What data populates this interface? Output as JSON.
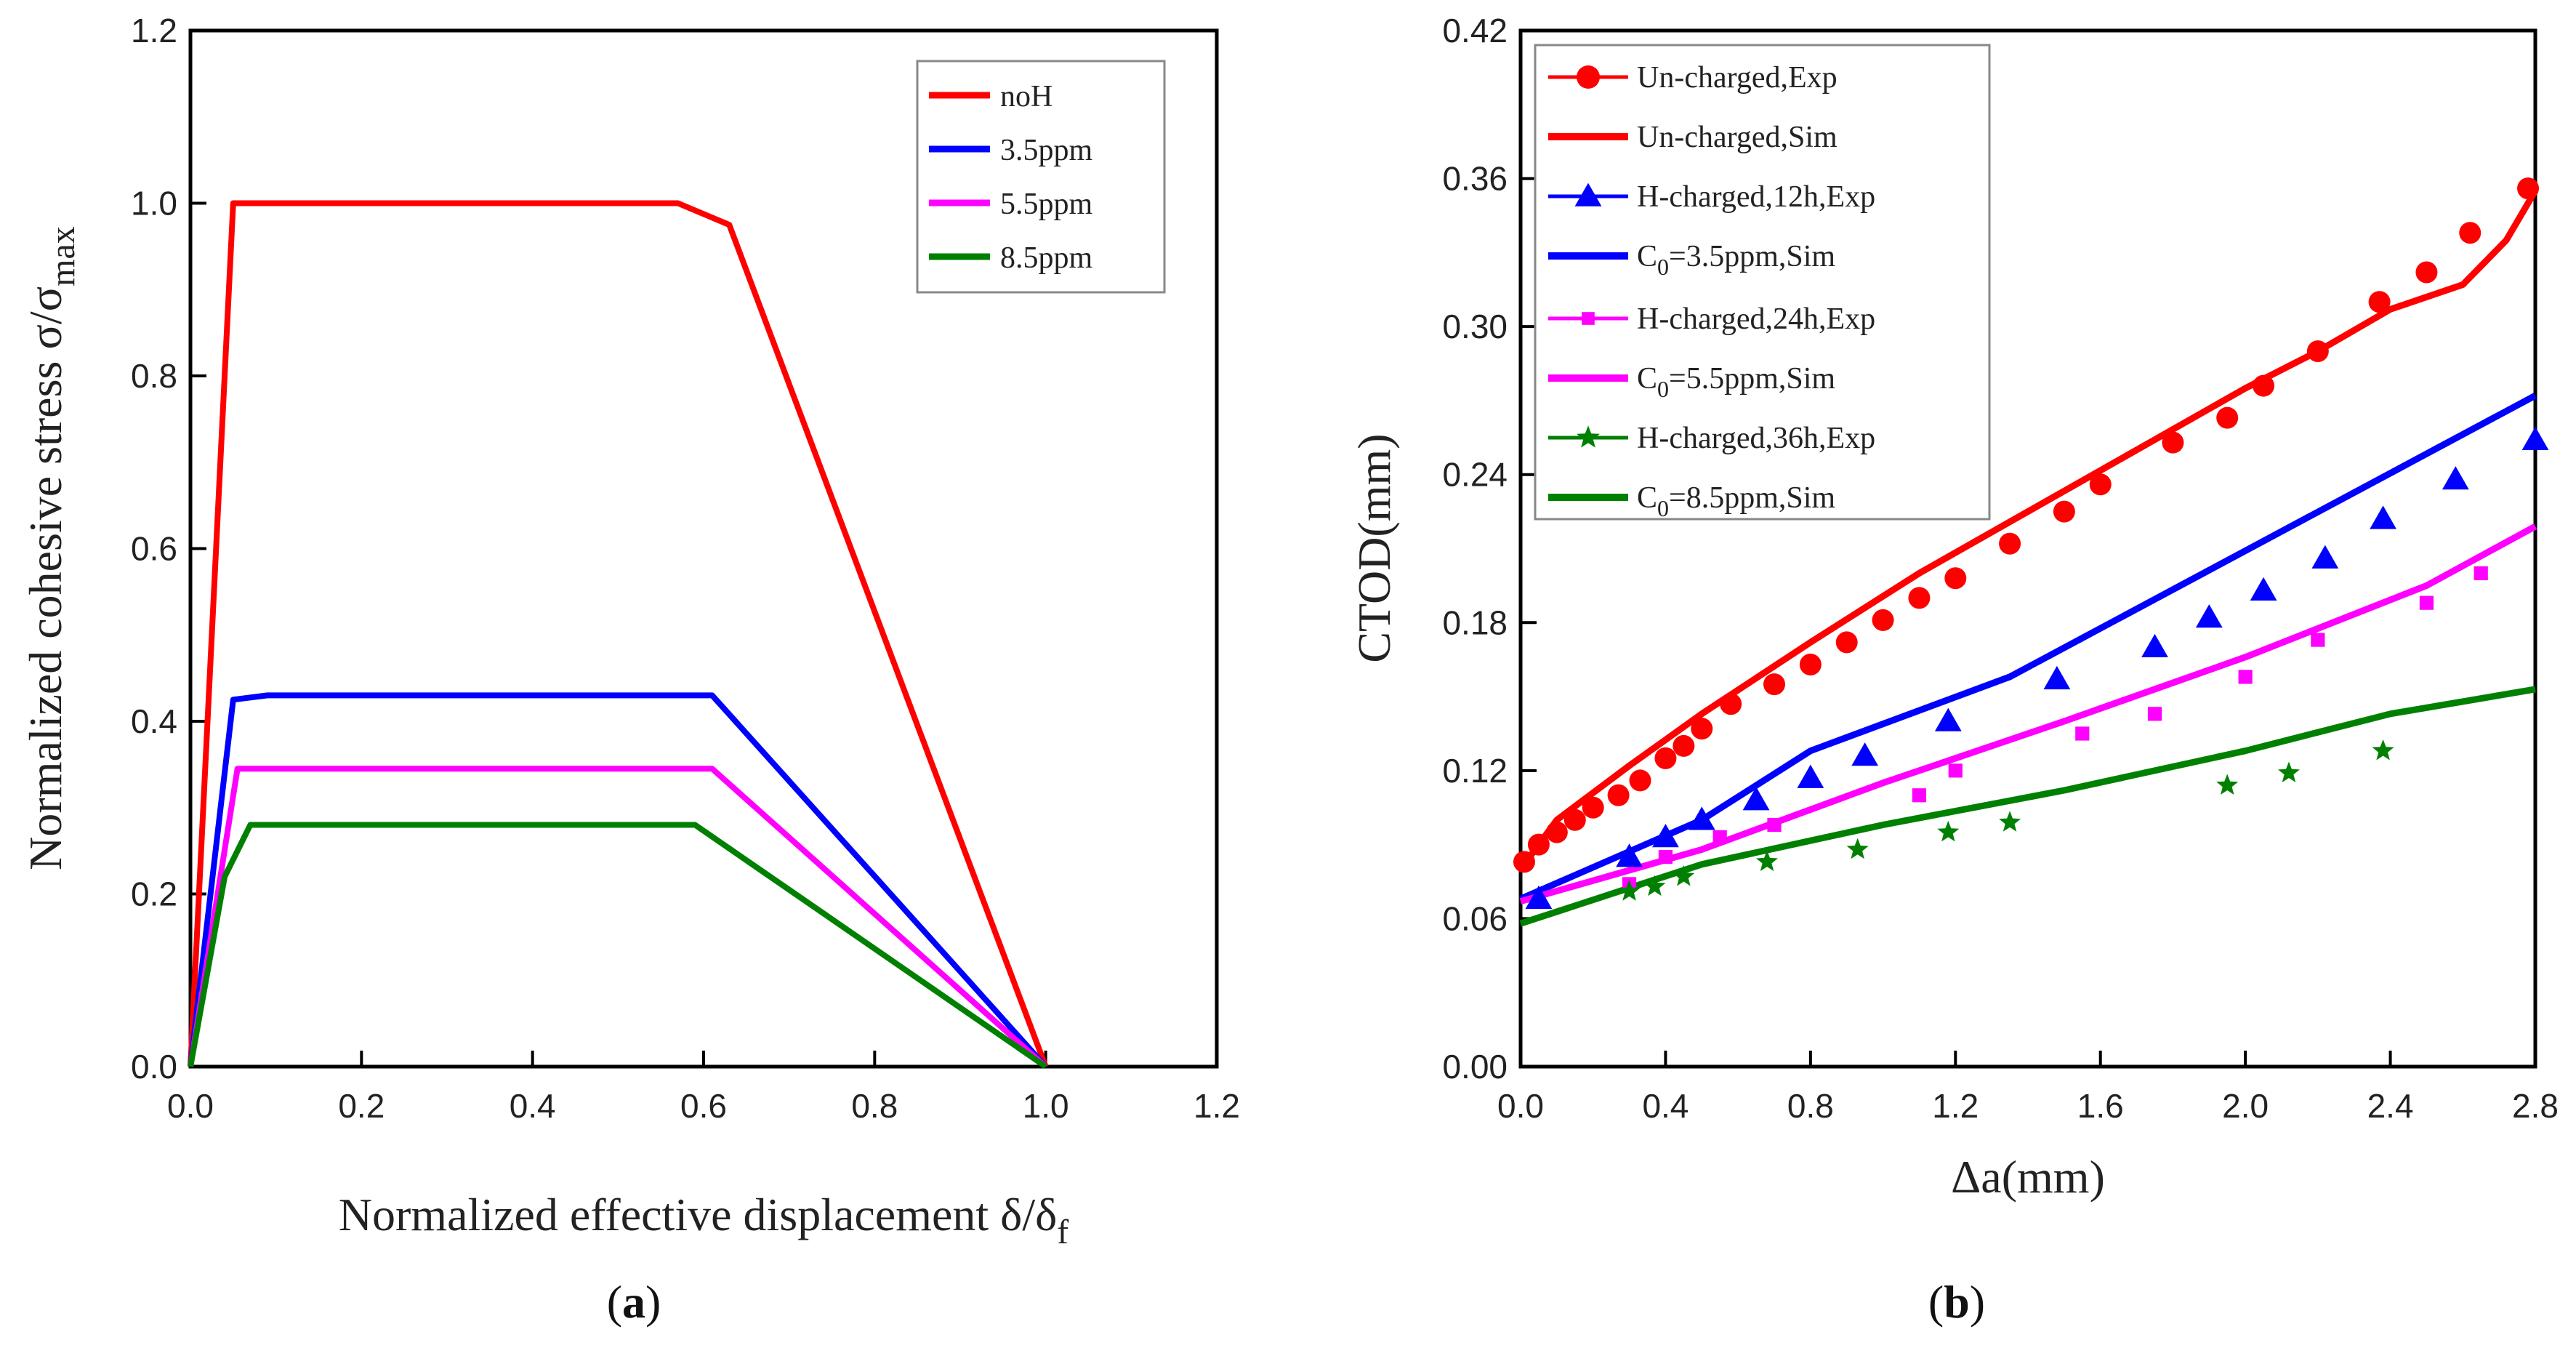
{
  "chart_data": [
    {
      "type": "line",
      "panel": "a",
      "caption": "a",
      "xlabel": "Normalized effective displacement δ/δ",
      "xlabel_sub": "f",
      "ylabel": "Normalized cohesive stress σ/σ",
      "ylabel_sub": "max",
      "xlim": [
        0.0,
        1.2
      ],
      "ylim": [
        0.0,
        1.2
      ],
      "xticks": [
        "0.0",
        "0.2",
        "0.4",
        "0.6",
        "0.8",
        "1.0",
        "1.2"
      ],
      "yticks": [
        "0.0",
        "0.2",
        "0.4",
        "0.6",
        "0.8",
        "1.0",
        "1.2"
      ],
      "legend_position": "top-right",
      "series": [
        {
          "name": "noH",
          "color": "#ff0000",
          "x": [
            0.0,
            0.05,
            0.57,
            0.63,
            1.0
          ],
          "y": [
            0.0,
            1.0,
            1.0,
            0.975,
            0.0
          ]
        },
        {
          "name": "3.5ppm",
          "color": "#0000ff",
          "x": [
            0.0,
            0.05,
            0.09,
            0.61,
            1.0
          ],
          "y": [
            0.0,
            0.425,
            0.43,
            0.43,
            0.0
          ]
        },
        {
          "name": "5.5ppm",
          "color": "#ff00ff",
          "x": [
            0.0,
            0.055,
            0.61,
            1.0
          ],
          "y": [
            0.0,
            0.345,
            0.345,
            0.0
          ]
        },
        {
          "name": "8.5ppm",
          "color": "#008000",
          "x": [
            0.0,
            0.04,
            0.07,
            0.59,
            1.0
          ],
          "y": [
            0.0,
            0.22,
            0.28,
            0.28,
            0.0
          ]
        }
      ]
    },
    {
      "type": "line",
      "panel": "b",
      "caption": "b",
      "xlabel": "Δa(mm)",
      "ylabel": "CTOD(mm)",
      "xlim": [
        0.0,
        2.8
      ],
      "ylim": [
        0.0,
        0.42
      ],
      "xticks": [
        "0.0",
        "0.4",
        "0.8",
        "1.2",
        "1.6",
        "2.0",
        "2.4",
        "2.8"
      ],
      "yticks": [
        "0.00",
        "0.06",
        "0.12",
        "0.18",
        "0.24",
        "0.30",
        "0.36",
        "0.42"
      ],
      "legend_position": "top-left",
      "legend": [
        {
          "label": "Un-charged,Exp",
          "color": "#ff0000",
          "kind": "marker",
          "marker": "circle"
        },
        {
          "label": "Un-charged,Sim",
          "color": "#ff0000",
          "kind": "line"
        },
        {
          "label": "H-charged,12h,Exp",
          "color": "#0000ff",
          "kind": "marker",
          "marker": "triangle"
        },
        {
          "label": "C",
          "sub": "0",
          "rest": "=3.5ppm,Sim",
          "color": "#0000ff",
          "kind": "line"
        },
        {
          "label": "H-charged,24h,Exp",
          "color": "#ff00ff",
          "kind": "marker",
          "marker": "square"
        },
        {
          "label": "C",
          "sub": "0",
          "rest": "=5.5ppm,Sim",
          "color": "#ff00ff",
          "kind": "line"
        },
        {
          "label": "H-charged,36h,Exp",
          "color": "#008000",
          "kind": "marker",
          "marker": "star"
        },
        {
          "label": "C",
          "sub": "0",
          "rest": "=8.5ppm,Sim",
          "color": "#008000",
          "kind": "line"
        }
      ],
      "series": [
        {
          "name": "Un-charged,Sim",
          "color": "#ff0000",
          "kind": "line",
          "x": [
            0.0,
            0.1,
            0.3,
            0.5,
            0.8,
            1.1,
            1.4,
            1.7,
            2.0,
            2.2,
            2.4,
            2.6,
            2.72,
            2.8
          ],
          "y": [
            0.08,
            0.1,
            0.122,
            0.143,
            0.172,
            0.2,
            0.225,
            0.25,
            0.275,
            0.29,
            0.307,
            0.317,
            0.335,
            0.355
          ]
        },
        {
          "name": "C0=3.5ppm,Sim",
          "color": "#0000ff",
          "kind": "line",
          "x": [
            0.0,
            0.5,
            0.8,
            1.35,
            2.8
          ],
          "y": [
            0.068,
            0.1,
            0.128,
            0.158,
            0.272
          ]
        },
        {
          "name": "C0=5.5ppm,Sim",
          "color": "#ff00ff",
          "kind": "line",
          "x": [
            0.0,
            0.5,
            1.0,
            1.5,
            2.0,
            2.5,
            2.8
          ],
          "y": [
            0.067,
            0.088,
            0.115,
            0.14,
            0.166,
            0.195,
            0.219
          ]
        },
        {
          "name": "C0=8.5ppm,Sim",
          "color": "#008000",
          "kind": "line",
          "x": [
            0.0,
            0.5,
            1.0,
            1.5,
            2.0,
            2.4,
            2.8
          ],
          "y": [
            0.058,
            0.082,
            0.098,
            0.112,
            0.128,
            0.143,
            0.153
          ]
        },
        {
          "name": "Un-charged,Exp",
          "color": "#ff0000",
          "kind": "marker",
          "marker": "circle",
          "x": [
            0.01,
            0.05,
            0.1,
            0.15,
            0.2,
            0.27,
            0.33,
            0.4,
            0.45,
            0.5,
            0.58,
            0.7,
            0.8,
            0.9,
            1.0,
            1.1,
            1.2,
            1.35,
            1.5,
            1.6,
            1.8,
            1.95,
            2.05,
            2.2,
            2.37,
            2.5,
            2.62,
            2.78
          ],
          "y": [
            0.083,
            0.09,
            0.095,
            0.1,
            0.105,
            0.11,
            0.116,
            0.125,
            0.13,
            0.137,
            0.147,
            0.155,
            0.163,
            0.172,
            0.181,
            0.19,
            0.198,
            0.212,
            0.225,
            0.236,
            0.253,
            0.263,
            0.276,
            0.29,
            0.31,
            0.322,
            0.338,
            0.356
          ]
        },
        {
          "name": "H-charged,12h,Exp",
          "color": "#0000ff",
          "kind": "marker",
          "marker": "triangle",
          "x": [
            0.05,
            0.3,
            0.4,
            0.5,
            0.65,
            0.8,
            0.95,
            1.18,
            1.48,
            1.75,
            1.9,
            2.05,
            2.22,
            2.38,
            2.58,
            2.8
          ],
          "y": [
            0.068,
            0.085,
            0.093,
            0.1,
            0.108,
            0.117,
            0.126,
            0.14,
            0.157,
            0.17,
            0.182,
            0.193,
            0.206,
            0.222,
            0.238,
            0.254
          ]
        },
        {
          "name": "H-charged,24h,Exp",
          "color": "#ff00ff",
          "kind": "marker",
          "marker": "square",
          "x": [
            0.3,
            0.4,
            0.55,
            0.7,
            1.1,
            1.2,
            1.55,
            1.75,
            2.0,
            2.2,
            2.5,
            2.65
          ],
          "y": [
            0.074,
            0.085,
            0.093,
            0.098,
            0.11,
            0.12,
            0.135,
            0.143,
            0.158,
            0.173,
            0.188,
            0.2
          ]
        },
        {
          "name": "H-charged,36h,Exp",
          "color": "#008000",
          "kind": "marker",
          "marker": "star",
          "x": [
            0.3,
            0.37,
            0.45,
            0.68,
            0.93,
            1.18,
            1.35,
            1.95,
            2.12,
            2.38
          ],
          "y": [
            0.071,
            0.073,
            0.077,
            0.083,
            0.088,
            0.095,
            0.099,
            0.114,
            0.119,
            0.128
          ]
        }
      ]
    }
  ]
}
